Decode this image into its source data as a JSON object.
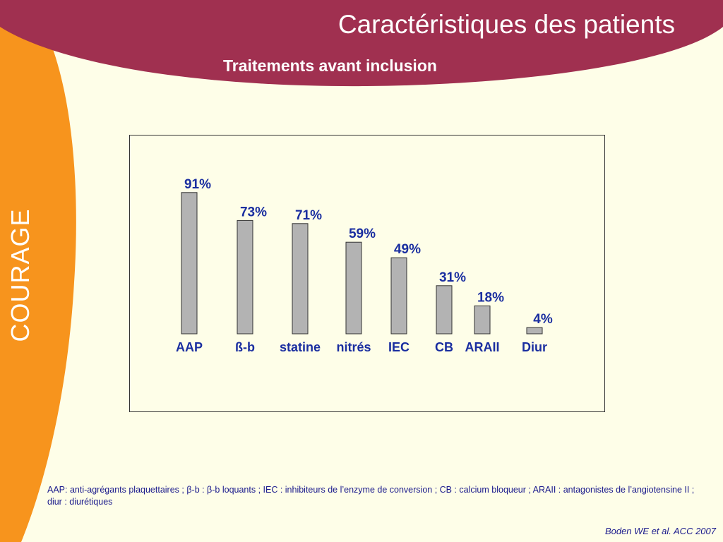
{
  "side_label": "COURAGE",
  "header": {
    "title": "Caractéristiques des patients",
    "subtitle": "Traitements avant inclusion"
  },
  "colors": {
    "header_band": "#a03050",
    "side_band": "#f7941d",
    "background": "#fefee8",
    "bar_fill": "#b3b3b3",
    "label_text": "#1a2ea0"
  },
  "chart_data": {
    "type": "bar",
    "categories": [
      "AAP",
      "ß-b",
      "statine",
      "nitrés",
      "IEC",
      "CB",
      "ARAII",
      "Diur"
    ],
    "values": [
      91,
      73,
      71,
      59,
      49,
      31,
      18,
      4
    ],
    "data_labels": [
      "91%",
      "73%",
      "71%",
      "59%",
      "49%",
      "31%",
      "18%",
      "4%"
    ],
    "title": "",
    "xlabel": "",
    "ylabel": "",
    "ylim": [
      0,
      100
    ],
    "grid": false
  },
  "footnote": "AAP: anti-agrégants plaquettaires ; β-b : β-b loquants ; IEC : inhibiteurs de l’enzyme de conversion ; CB : calcium bloqueur  ; ARAII : antagonistes de l’angiotensine II ; diur : diurétiques",
  "citation": "Boden WE et al. ACC 2007"
}
